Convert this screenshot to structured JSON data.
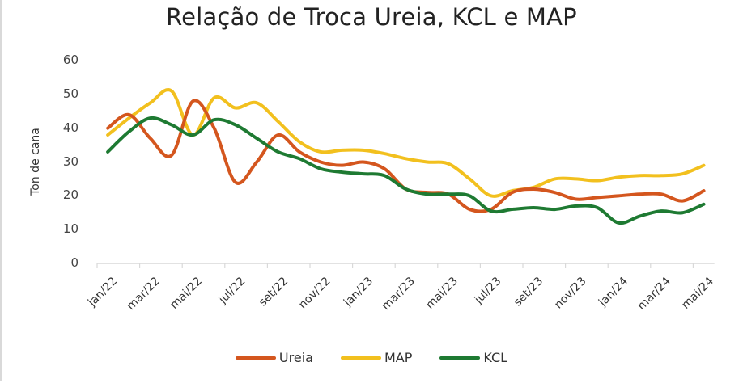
{
  "chart_data": {
    "type": "line",
    "title": "Relação de Troca Ureia, KCL e MAP",
    "xlabel": "",
    "ylabel": "Ton de cana",
    "ylim": [
      0,
      60
    ],
    "yticks": [
      0,
      10,
      20,
      30,
      40,
      50,
      60
    ],
    "grid": false,
    "legend_position": "bottom",
    "x": [
      "jan/22",
      "fev/22",
      "mar/22",
      "abr/22",
      "mai/22",
      "jun/22",
      "jul/22",
      "ago/22",
      "set/22",
      "out/22",
      "nov/22",
      "dez/22",
      "jan/23",
      "fev/23",
      "mar/23",
      "abr/23",
      "mai/23",
      "jun/23",
      "jul/23",
      "ago/23",
      "set/23",
      "out/23",
      "nov/23",
      "dez/23",
      "jan/24",
      "fev/24",
      "mar/24",
      "abr/24",
      "mai/24"
    ],
    "xtick_labels": [
      "jan/22",
      "mar/22",
      "mai/22",
      "jul/22",
      "set/22",
      "nov/22",
      "jan/23",
      "mar/23",
      "mai/23",
      "jul/23",
      "set/23",
      "nov/23",
      "jan/24",
      "mar/24",
      "mai/24"
    ],
    "series": [
      {
        "name": "Ureia",
        "color": "#d4561e",
        "values": [
          40,
          44,
          37,
          32,
          48,
          40,
          24,
          30,
          38,
          33,
          30,
          29,
          30,
          28,
          22,
          21,
          20.5,
          16,
          16,
          21,
          22,
          21,
          19,
          19.5,
          20,
          20.5,
          20.5,
          18.5,
          21.5
        ]
      },
      {
        "name": "MAP",
        "color": "#f2c01e",
        "values": [
          38,
          43,
          47.5,
          51,
          38,
          49,
          46,
          47.5,
          42,
          36,
          33,
          33.5,
          33.5,
          32.5,
          31,
          30,
          29.5,
          25,
          20,
          21.5,
          22.5,
          25,
          25,
          24.5,
          25.5,
          26,
          26,
          26.5,
          29
        ]
      },
      {
        "name": "KCL",
        "color": "#1e7a32",
        "values": [
          33,
          39,
          43,
          41,
          38,
          42.5,
          41,
          37,
          33,
          31,
          28,
          27,
          26.5,
          26,
          22,
          20.5,
          20.5,
          20,
          15.5,
          16,
          16.5,
          16,
          17,
          16.5,
          12,
          14,
          15.5,
          15,
          17.5
        ]
      }
    ]
  },
  "legend": {
    "items": [
      {
        "label": "Ureia",
        "color": "#d4561e"
      },
      {
        "label": "MAP",
        "color": "#f2c01e"
      },
      {
        "label": "KCL",
        "color": "#1e7a32"
      }
    ]
  }
}
